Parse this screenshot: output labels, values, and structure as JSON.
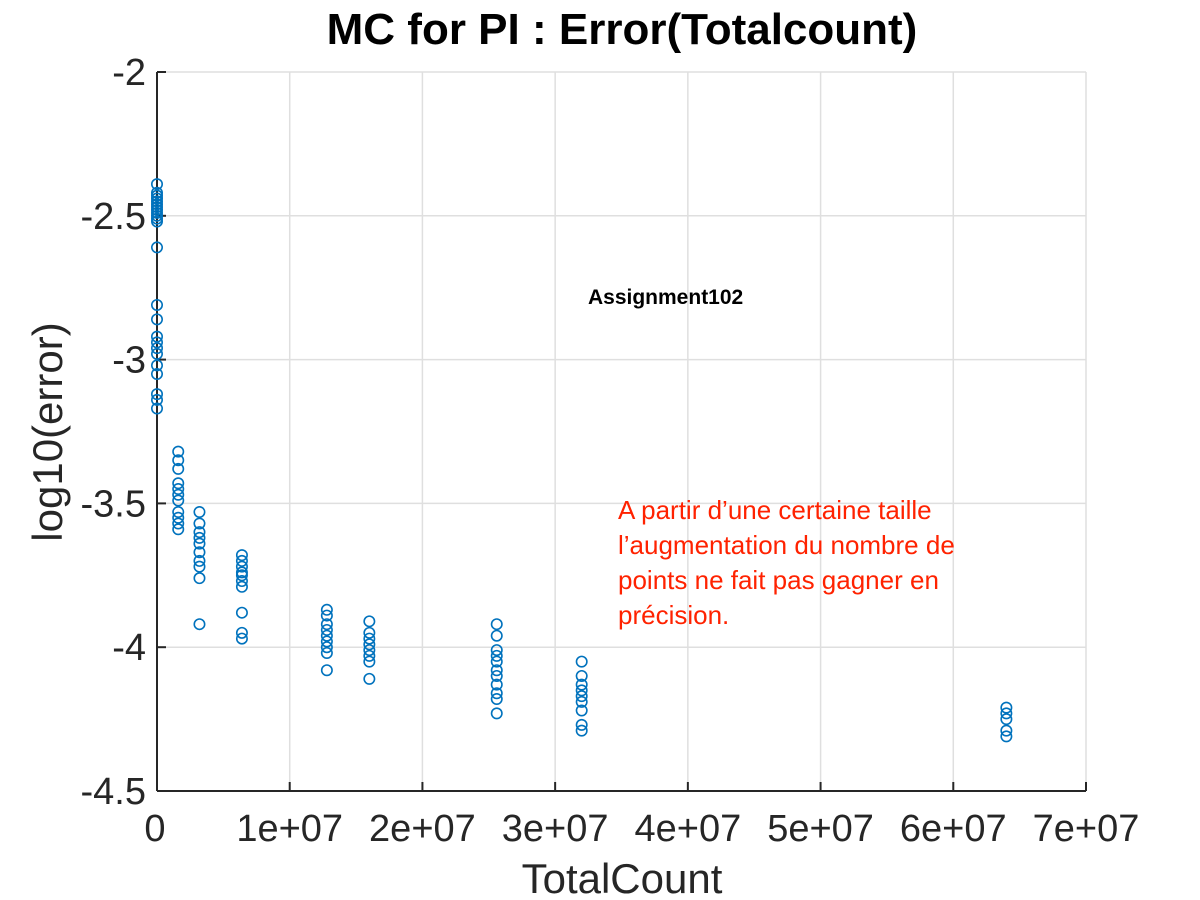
{
  "chart_data": {
    "type": "scatter",
    "title": "MC for PI : Error(Totalcount)",
    "xlabel": "TotalCount",
    "ylabel": "log10(error)",
    "xlim": [
      0,
      70000000
    ],
    "ylim": [
      -4.5,
      -2
    ],
    "xticks": [
      0,
      10000000,
      20000000,
      30000000,
      40000000,
      50000000,
      60000000,
      70000000
    ],
    "xtick_labels": [
      "0",
      "1e+07",
      "2e+07",
      "3e+07",
      "4e+07",
      "5e+07",
      "6e+07",
      "7e+07"
    ],
    "yticks": [
      -2,
      -2.5,
      -3,
      -3.5,
      -4,
      -4.5
    ],
    "ytick_labels": [
      "-2",
      "-2.5",
      "-3",
      "-3.5",
      "-4",
      "-4.5"
    ],
    "grid": true,
    "marker": "circle-open",
    "color": "#0072bd",
    "annotations": [
      {
        "text": "Assignment102",
        "x": 32000000,
        "y": -2.79,
        "style": "bold-black"
      },
      {
        "lines": [
          "A partir d’une certaine taille",
          "l’augmentation du nombre de",
          "points ne fait pas gagner en",
          "précision."
        ],
        "x": 34800000,
        "y": -3.52,
        "style": "red"
      }
    ],
    "points": [
      {
        "x": 0,
        "y": [
          -2.39,
          -2.42,
          -2.43,
          -2.44,
          -2.45,
          -2.46,
          -2.47,
          -2.48,
          -2.49,
          -2.5,
          -2.51,
          -2.52,
          -2.61,
          -2.81,
          -2.86,
          -2.92,
          -2.94,
          -2.96,
          -2.98,
          -3.02,
          -3.05,
          -3.12,
          -3.14,
          -3.17
        ]
      },
      {
        "x": 1600000,
        "y": [
          -3.32,
          -3.35,
          -3.38,
          -3.43,
          -3.45,
          -3.47,
          -3.49,
          -3.53,
          -3.55,
          -3.57,
          -3.59
        ]
      },
      {
        "x": 3200000,
        "y": [
          -3.53,
          -3.57,
          -3.6,
          -3.62,
          -3.64,
          -3.67,
          -3.7,
          -3.72,
          -3.76,
          -3.92
        ]
      },
      {
        "x": 6400000,
        "y": [
          -3.68,
          -3.7,
          -3.72,
          -3.74,
          -3.75,
          -3.77,
          -3.79,
          -3.88,
          -3.95,
          -3.97
        ]
      },
      {
        "x": 12800000,
        "y": [
          -3.87,
          -3.89,
          -3.92,
          -3.94,
          -3.96,
          -3.98,
          -4.0,
          -4.02,
          -4.08
        ]
      },
      {
        "x": 16000000,
        "y": [
          -3.91,
          -3.95,
          -3.97,
          -3.99,
          -4.01,
          -4.03,
          -4.05,
          -4.11
        ]
      },
      {
        "x": 25600000,
        "y": [
          -3.92,
          -3.96,
          -4.01,
          -4.03,
          -4.05,
          -4.08,
          -4.1,
          -4.13,
          -4.16,
          -4.18,
          -4.23
        ]
      },
      {
        "x": 32000000,
        "y": [
          -4.05,
          -4.1,
          -4.13,
          -4.15,
          -4.17,
          -4.19,
          -4.22,
          -4.27,
          -4.29
        ]
      },
      {
        "x": 64000000,
        "y": [
          -4.21,
          -4.23,
          -4.25,
          -4.29,
          -4.31
        ]
      }
    ]
  }
}
